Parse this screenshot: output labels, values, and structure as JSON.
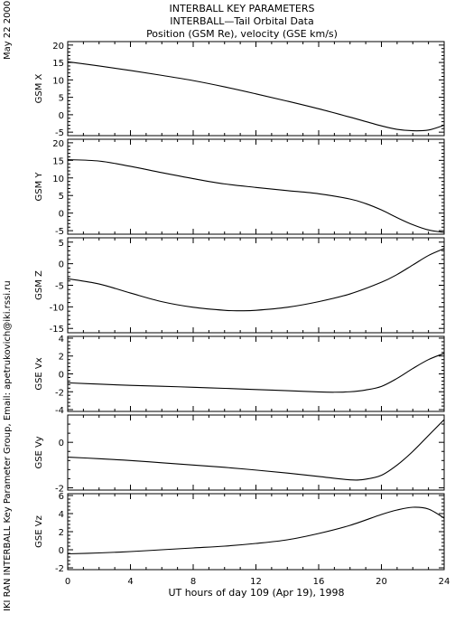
{
  "title_lines": [
    "INTERBALL KEY PARAMETERS",
    "INTERBALL—Tail Orbital Data",
    "Position (GSM Re), velocity (GSE km/s)"
  ],
  "side_date": "May 22 2000",
  "side_credit": "IKI RAN INTERBALL Key Parameter Group, Email: apetrukovich@iki.rssi.ru",
  "chart_data": {
    "type": "line",
    "xlabel": "UT hours of day 109 (Apr 19), 1998",
    "xlim": [
      0,
      24
    ],
    "xticks": [
      0,
      4,
      8,
      12,
      16,
      20,
      24
    ],
    "grid": false,
    "panels": [
      {
        "ylabel": "GSM X",
        "ylim": [
          -6,
          21
        ],
        "yticks": [
          -5,
          0,
          5,
          10,
          15,
          20
        ],
        "x": [
          0,
          2,
          4,
          6,
          8,
          10,
          12,
          14,
          16,
          18,
          20,
          21,
          22,
          23,
          24
        ],
        "y": [
          15.2,
          14,
          12.7,
          11.3,
          9.8,
          8.0,
          6.0,
          3.9,
          1.7,
          -0.7,
          -3.2,
          -4.2,
          -4.6,
          -4.4,
          -3.0
        ]
      },
      {
        "ylabel": "GSM Y",
        "ylim": [
          -6,
          21
        ],
        "yticks": [
          -5,
          0,
          5,
          10,
          15,
          20
        ],
        "x": [
          0,
          2,
          4,
          6,
          8,
          10,
          12,
          14,
          16,
          18,
          19,
          20,
          21,
          22,
          23,
          24
        ],
        "y": [
          15.2,
          14.8,
          13.3,
          11.5,
          9.8,
          8.3,
          7.3,
          6.4,
          5.5,
          4.0,
          2.7,
          0.9,
          -1.3,
          -3.3,
          -4.8,
          -5.5
        ]
      },
      {
        "ylabel": "GSM Z",
        "ylim": [
          -16,
          6
        ],
        "yticks": [
          -15,
          -10,
          -5,
          0,
          5
        ],
        "x": [
          0,
          2,
          4,
          6,
          8,
          10,
          11,
          12,
          14,
          16,
          18,
          20,
          21,
          22,
          23,
          24
        ],
        "y": [
          -3.5,
          -4.7,
          -6.8,
          -8.8,
          -10.1,
          -10.8,
          -10.9,
          -10.8,
          -10.1,
          -8.8,
          -7.0,
          -4.3,
          -2.5,
          -0.3,
          1.9,
          3.5
        ]
      },
      {
        "ylabel": "GSE Vx",
        "ylim": [
          -4.2,
          4.2
        ],
        "yticks": [
          -4,
          -2,
          0,
          2,
          4
        ],
        "x": [
          0,
          2,
          4,
          6,
          8,
          10,
          12,
          14,
          16,
          17,
          18,
          19,
          20,
          21,
          22,
          23,
          24
        ],
        "y": [
          -1.0,
          -1.15,
          -1.28,
          -1.38,
          -1.5,
          -1.62,
          -1.75,
          -1.88,
          -2.02,
          -2.05,
          -2.0,
          -1.8,
          -1.4,
          -0.5,
          0.6,
          1.6,
          2.3
        ]
      },
      {
        "ylabel": "GSE Vy",
        "ylim": [
          -2.1,
          1.2
        ],
        "yticks": [
          -2,
          0
        ],
        "x": [
          0,
          2,
          4,
          6,
          8,
          10,
          12,
          14,
          16,
          18,
          19,
          20,
          21,
          22,
          23,
          24
        ],
        "y": [
          -0.65,
          -0.72,
          -0.8,
          -0.9,
          -1.0,
          -1.1,
          -1.22,
          -1.35,
          -1.5,
          -1.65,
          -1.62,
          -1.45,
          -1.0,
          -0.4,
          0.3,
          1.0
        ]
      },
      {
        "ylabel": "GSE Vz",
        "ylim": [
          -2.2,
          6.2
        ],
        "yticks": [
          -2,
          0,
          2,
          4,
          6
        ],
        "x": [
          0,
          2,
          4,
          6,
          8,
          10,
          12,
          14,
          16,
          18,
          20,
          21,
          22,
          23,
          24
        ],
        "y": [
          -0.45,
          -0.35,
          -0.2,
          0.0,
          0.2,
          0.4,
          0.7,
          1.1,
          1.8,
          2.7,
          3.9,
          4.4,
          4.7,
          4.5,
          3.5
        ]
      }
    ]
  }
}
